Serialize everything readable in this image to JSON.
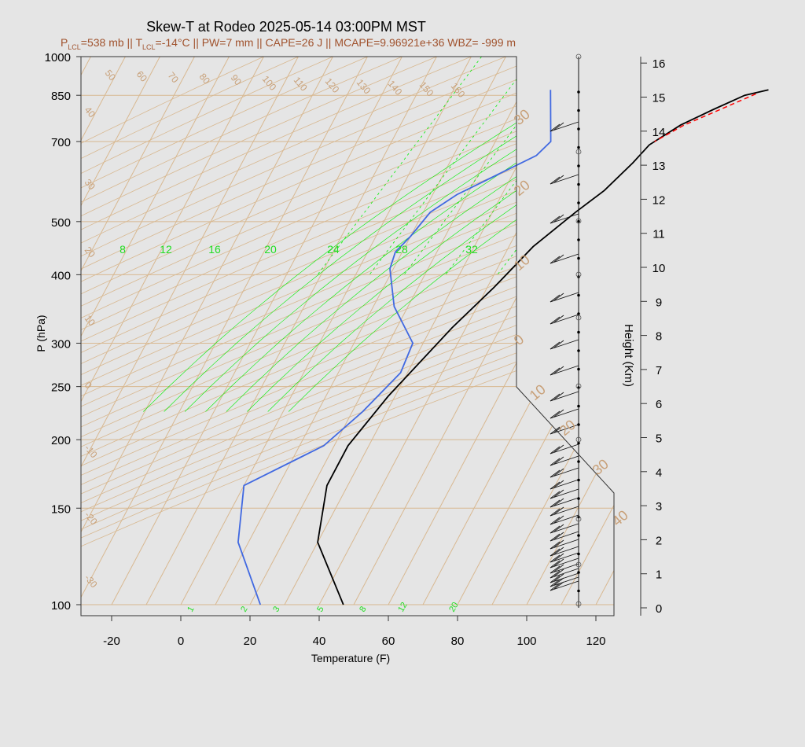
{
  "title": "Skew-T at Rodeo 2025-05-14 03:00PM MST",
  "subtitle": {
    "plcl_label": "P",
    "plcl_sub": "LCL",
    "plcl_val": "=538 mb || T",
    "tlcl_sub": "LCL",
    "tlcl_val": "=-14°C || PW=7 mm || CAPE=26 J || MCAPE=9.96921e+36 WBZ= -999 m"
  },
  "chart_data": {
    "type": "line",
    "xlabel": "Temperature (F)",
    "ylabel": "P (hPa)",
    "y2label": "Height (Km)",
    "x_ticks": [
      -20,
      0,
      20,
      40,
      60,
      80,
      100,
      120
    ],
    "xlim": [
      -29,
      125
    ],
    "p_ticks": [
      100,
      150,
      200,
      250,
      300,
      400,
      500,
      700,
      850,
      1000
    ],
    "ylim_hpa": [
      1050,
      100
    ],
    "height_ticks": [
      0,
      1,
      2,
      3,
      4,
      5,
      6,
      7,
      8,
      9,
      10,
      11,
      12,
      13,
      14,
      15,
      16
    ],
    "isotherm_labels": [
      "50",
      "60",
      "70",
      "80",
      "90",
      "100",
      "110",
      "120",
      "130",
      "140",
      "150",
      "160"
    ],
    "isotherm_labels_left": [
      "40",
      "30",
      "20",
      "10",
      "0",
      "-10",
      "-20",
      "-30"
    ],
    "isotherm_labels_right": [
      "30",
      "20",
      "10",
      "0",
      "10",
      "20",
      "30",
      "40"
    ],
    "mixing_ratio_top_labels": [
      "8",
      "12",
      "16",
      "20",
      "24",
      "28",
      "32"
    ],
    "mixing_ratio_bottom_labels": [
      "1",
      "2",
      "3",
      "5",
      "8",
      "12",
      "20"
    ],
    "series": [
      {
        "name": "temperature",
        "color": "#000000",
        "points": [
          [
            91,
            870
          ],
          [
            85,
            850
          ],
          [
            78,
            800
          ],
          [
            71,
            750
          ],
          [
            65,
            690
          ],
          [
            63,
            640
          ],
          [
            59,
            570
          ],
          [
            54,
            520
          ],
          [
            47,
            450
          ],
          [
            42,
            380
          ],
          [
            36,
            320
          ],
          [
            28,
            240
          ],
          [
            24,
            195
          ],
          [
            24,
            165
          ],
          [
            30,
            130
          ],
          [
            47,
            100
          ]
        ]
      },
      {
        "name": "dewpoint",
        "color": "#4169e1",
        "points": [
          [
            28,
            870
          ],
          [
            36,
            700
          ],
          [
            34,
            660
          ],
          [
            17,
            560
          ],
          [
            12,
            520
          ],
          [
            10,
            470
          ],
          [
            8,
            440
          ],
          [
            9,
            410
          ],
          [
            16,
            350
          ],
          [
            27,
            300
          ],
          [
            28,
            265
          ],
          [
            23,
            225
          ],
          [
            17,
            195
          ],
          [
            0,
            165
          ],
          [
            7,
            130
          ],
          [
            23,
            100
          ]
        ]
      },
      {
        "name": "parcel",
        "color": "#ff0000",
        "dashed": true,
        "points": [
          [
            88,
            855
          ],
          [
            80,
            800
          ],
          [
            72,
            750
          ],
          [
            66,
            700
          ]
        ]
      }
    ],
    "colors": {
      "isotherm": "#d8b890",
      "isotherm_text": "#c8a078",
      "isobar": "#d8b890",
      "mixing_ratio": "#00ee00",
      "background": "#e5e5e5"
    }
  }
}
